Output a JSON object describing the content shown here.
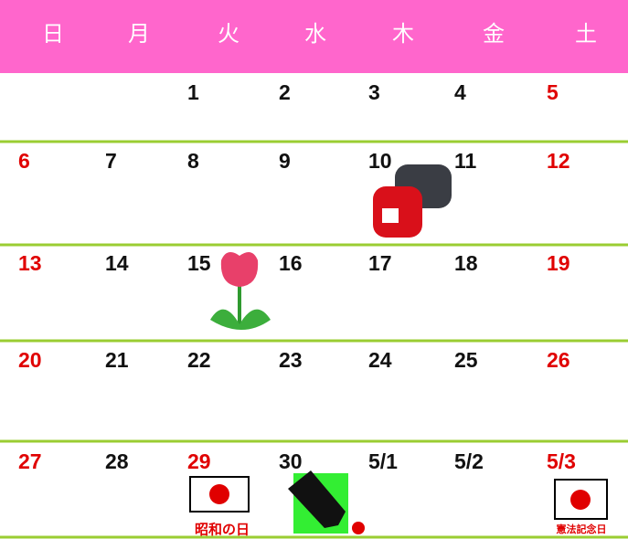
{
  "header": {
    "days": [
      "日",
      "月",
      "火",
      "水",
      "木",
      "金",
      "土"
    ]
  },
  "weeks": [
    [
      null,
      null,
      {
        "date": "1"
      },
      {
        "date": "2"
      },
      {
        "date": "3"
      },
      {
        "date": "4"
      },
      {
        "date": "5"
      }
    ],
    [
      {
        "date": "6"
      },
      {
        "date": "7"
      },
      {
        "date": "8"
      },
      {
        "date": "9"
      },
      {
        "date": "10"
      },
      {
        "date": "11"
      },
      {
        "date": "12"
      }
    ],
    [
      {
        "date": "13"
      },
      {
        "date": "14"
      },
      {
        "date": "15"
      },
      {
        "date": "16"
      },
      {
        "date": "17"
      },
      {
        "date": "18"
      },
      {
        "date": "19"
      }
    ],
    [
      {
        "date": "20"
      },
      {
        "date": "21"
      },
      {
        "date": "22"
      },
      {
        "date": "23"
      },
      {
        "date": "24"
      },
      {
        "date": "25"
      },
      {
        "date": "26"
      }
    ],
    [
      {
        "date": "27"
      },
      {
        "date": "28"
      },
      {
        "date": "29",
        "holiday": "昭和の日"
      },
      {
        "date": "30"
      },
      {
        "date": "5/1"
      },
      {
        "date": "5/2"
      },
      {
        "date": "5/3",
        "holiday": "憲法記念日"
      }
    ]
  ]
}
